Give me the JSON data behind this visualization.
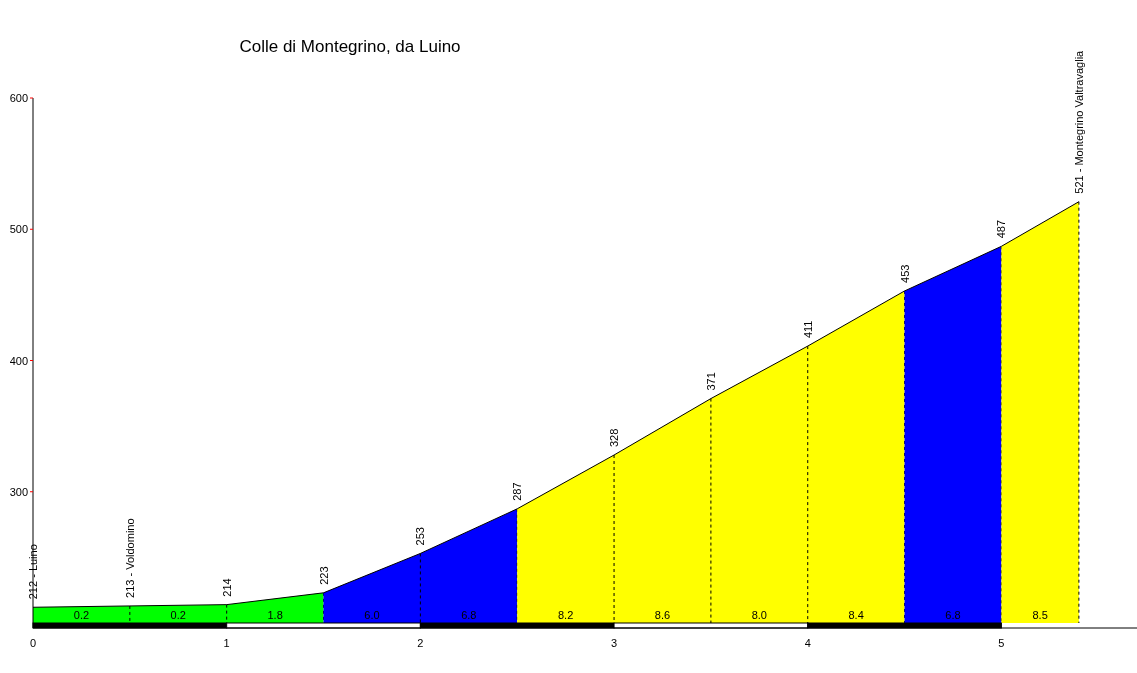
{
  "chart_data": {
    "type": "area",
    "title": "Colle di Montegrino, da Luino",
    "xlim": [
      0,
      5.7
    ],
    "xticks": [
      0,
      1,
      2,
      3,
      4,
      5
    ],
    "ylim": [
      200,
      600
    ],
    "yticks": [
      300,
      400,
      500,
      600
    ],
    "series": [
      {
        "color": "#00ff00",
        "x": [
          0,
          0.5,
          1,
          1.5
        ],
        "values": [
          212,
          213,
          214,
          223
        ],
        "value_labels": [
          "212 - Luino",
          "213 - Voldomino",
          "214",
          "223"
        ]
      },
      {
        "color": "#0000ff",
        "x": [
          1.5,
          2,
          2.5
        ],
        "values": [
          223,
          253,
          287
        ],
        "value_labels": [
          null,
          "253",
          "287"
        ]
      },
      {
        "color": "#ffff00",
        "x": [
          2.5,
          3,
          3.5,
          4,
          4.5
        ],
        "values": [
          287,
          328,
          371,
          411,
          453
        ],
        "value_labels": [
          null,
          "328",
          "371",
          "411",
          "453"
        ]
      },
      {
        "color": "#0000ff",
        "x": [
          4.5,
          5
        ],
        "values": [
          453,
          487
        ],
        "value_labels": [
          null,
          "487"
        ]
      },
      {
        "color": "#ffff00",
        "x": [
          5,
          5.4
        ],
        "values": [
          487,
          521
        ],
        "value_labels": [
          null,
          "521 - Montegrino Valtravaglia"
        ]
      }
    ],
    "annotations": [
      "0.2",
      "0.2",
      "1.8",
      "6.0",
      "6.8",
      "8.2",
      "8.6",
      "8.0",
      "8.4",
      "6.8",
      "8.5"
    ]
  }
}
